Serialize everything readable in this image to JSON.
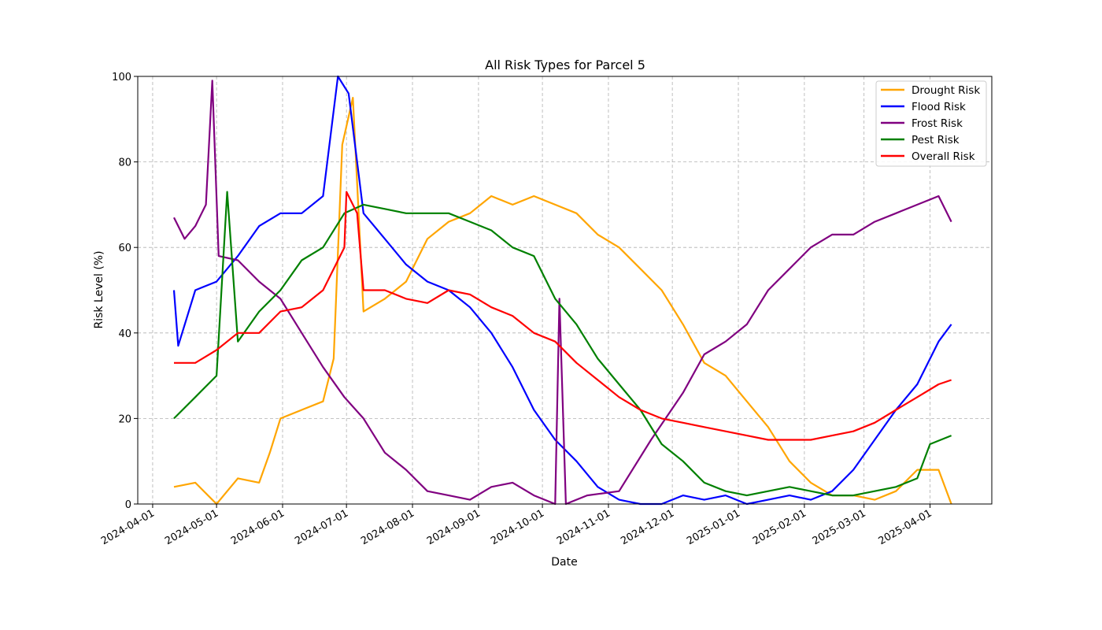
{
  "chart_data": {
    "type": "line",
    "title": "All Risk Types for Parcel 5",
    "xlabel": "Date",
    "ylabel": "Risk Level (%)",
    "xlim": [
      "2024-03-25",
      "2025-04-30"
    ],
    "ylim": [
      0,
      100
    ],
    "grid": true,
    "legend_position": "top-right",
    "x_ticks": [
      "2024-04-01",
      "2024-05-01",
      "2024-06-01",
      "2024-07-01",
      "2024-08-01",
      "2024-09-01",
      "2024-10-01",
      "2024-11-01",
      "2024-12-01",
      "2025-01-01",
      "2025-02-01",
      "2025-03-01",
      "2025-04-01"
    ],
    "y_ticks": [
      0,
      20,
      40,
      60,
      80,
      100
    ],
    "series": [
      {
        "name": "Drought Risk",
        "color": "#ffa500",
        "points": [
          [
            "2024-04-11",
            4
          ],
          [
            "2024-04-21",
            5
          ],
          [
            "2024-05-01",
            0
          ],
          [
            "2024-05-11",
            6
          ],
          [
            "2024-05-21",
            5
          ],
          [
            "2024-05-26",
            12
          ],
          [
            "2024-05-31",
            20
          ],
          [
            "2024-06-10",
            22
          ],
          [
            "2024-06-20",
            24
          ],
          [
            "2024-06-25",
            34
          ],
          [
            "2024-06-29",
            84
          ],
          [
            "2024-07-04",
            95
          ],
          [
            "2024-07-09",
            45
          ],
          [
            "2024-07-19",
            48
          ],
          [
            "2024-07-29",
            52
          ],
          [
            "2024-08-08",
            62
          ],
          [
            "2024-08-18",
            66
          ],
          [
            "2024-08-28",
            68
          ],
          [
            "2024-09-07",
            72
          ],
          [
            "2024-09-17",
            70
          ],
          [
            "2024-09-27",
            72
          ],
          [
            "2024-10-07",
            70
          ],
          [
            "2024-10-17",
            68
          ],
          [
            "2024-10-27",
            63
          ],
          [
            "2024-11-06",
            60
          ],
          [
            "2024-11-16",
            55
          ],
          [
            "2024-11-26",
            50
          ],
          [
            "2024-12-06",
            42
          ],
          [
            "2024-12-16",
            33
          ],
          [
            "2024-12-26",
            30
          ],
          [
            "2025-01-05",
            24
          ],
          [
            "2025-01-15",
            18
          ],
          [
            "2025-01-25",
            10
          ],
          [
            "2025-02-04",
            5
          ],
          [
            "2025-02-14",
            2
          ],
          [
            "2025-02-24",
            2
          ],
          [
            "2025-03-06",
            1
          ],
          [
            "2025-03-16",
            3
          ],
          [
            "2025-03-26",
            8
          ],
          [
            "2025-04-05",
            8
          ],
          [
            "2025-04-11",
            0
          ]
        ]
      },
      {
        "name": "Flood Risk",
        "color": "#0000ff",
        "points": [
          [
            "2024-04-11",
            50
          ],
          [
            "2024-04-13",
            37
          ],
          [
            "2024-04-21",
            50
          ],
          [
            "2024-05-01",
            52
          ],
          [
            "2024-05-11",
            58
          ],
          [
            "2024-05-21",
            65
          ],
          [
            "2024-05-31",
            68
          ],
          [
            "2024-06-10",
            68
          ],
          [
            "2024-06-20",
            72
          ],
          [
            "2024-06-27",
            100
          ],
          [
            "2024-07-02",
            96
          ],
          [
            "2024-07-09",
            68
          ],
          [
            "2024-07-19",
            62
          ],
          [
            "2024-07-29",
            56
          ],
          [
            "2024-08-08",
            52
          ],
          [
            "2024-08-18",
            50
          ],
          [
            "2024-08-28",
            46
          ],
          [
            "2024-09-07",
            40
          ],
          [
            "2024-09-17",
            32
          ],
          [
            "2024-09-27",
            22
          ],
          [
            "2024-10-07",
            15
          ],
          [
            "2024-10-17",
            10
          ],
          [
            "2024-10-27",
            4
          ],
          [
            "2024-11-06",
            1
          ],
          [
            "2024-11-16",
            0
          ],
          [
            "2024-11-26",
            0
          ],
          [
            "2024-12-06",
            2
          ],
          [
            "2024-12-16",
            1
          ],
          [
            "2024-12-26",
            2
          ],
          [
            "2025-01-05",
            0
          ],
          [
            "2025-01-15",
            1
          ],
          [
            "2025-01-25",
            2
          ],
          [
            "2025-02-04",
            1
          ],
          [
            "2025-02-14",
            3
          ],
          [
            "2025-02-24",
            8
          ],
          [
            "2025-03-06",
            15
          ],
          [
            "2025-03-16",
            22
          ],
          [
            "2025-03-26",
            28
          ],
          [
            "2025-04-05",
            38
          ],
          [
            "2025-04-11",
            42
          ]
        ]
      },
      {
        "name": "Frost Risk",
        "color": "#800080",
        "points": [
          [
            "2024-04-11",
            67
          ],
          [
            "2024-04-16",
            62
          ],
          [
            "2024-04-21",
            65
          ],
          [
            "2024-04-26",
            70
          ],
          [
            "2024-04-29",
            99
          ],
          [
            "2024-05-02",
            58
          ],
          [
            "2024-05-11",
            57
          ],
          [
            "2024-05-21",
            52
          ],
          [
            "2024-05-31",
            48
          ],
          [
            "2024-06-10",
            40
          ],
          [
            "2024-06-20",
            32
          ],
          [
            "2024-06-30",
            25
          ],
          [
            "2024-07-09",
            20
          ],
          [
            "2024-07-19",
            12
          ],
          [
            "2024-07-29",
            8
          ],
          [
            "2024-08-08",
            3
          ],
          [
            "2024-08-18",
            2
          ],
          [
            "2024-08-28",
            1
          ],
          [
            "2024-09-07",
            4
          ],
          [
            "2024-09-17",
            5
          ],
          [
            "2024-09-27",
            2
          ],
          [
            "2024-10-07",
            0
          ],
          [
            "2024-10-09",
            48
          ],
          [
            "2024-10-12",
            0
          ],
          [
            "2024-10-22",
            2
          ],
          [
            "2024-11-06",
            3
          ],
          [
            "2024-11-21",
            15
          ],
          [
            "2024-12-06",
            26
          ],
          [
            "2024-12-16",
            35
          ],
          [
            "2024-12-26",
            38
          ],
          [
            "2025-01-05",
            42
          ],
          [
            "2025-01-15",
            50
          ],
          [
            "2025-01-25",
            55
          ],
          [
            "2025-02-04",
            60
          ],
          [
            "2025-02-14",
            63
          ],
          [
            "2025-02-24",
            63
          ],
          [
            "2025-03-06",
            66
          ],
          [
            "2025-03-16",
            68
          ],
          [
            "2025-03-26",
            70
          ],
          [
            "2025-04-05",
            72
          ],
          [
            "2025-04-11",
            66
          ]
        ]
      },
      {
        "name": "Pest Risk",
        "color": "#008000",
        "points": [
          [
            "2024-04-11",
            20
          ],
          [
            "2024-04-21",
            25
          ],
          [
            "2024-05-01",
            30
          ],
          [
            "2024-05-06",
            73
          ],
          [
            "2024-05-11",
            38
          ],
          [
            "2024-05-21",
            45
          ],
          [
            "2024-05-31",
            50
          ],
          [
            "2024-06-10",
            57
          ],
          [
            "2024-06-20",
            60
          ],
          [
            "2024-06-30",
            68
          ],
          [
            "2024-07-09",
            70
          ],
          [
            "2024-07-19",
            69
          ],
          [
            "2024-07-29",
            68
          ],
          [
            "2024-08-08",
            68
          ],
          [
            "2024-08-18",
            68
          ],
          [
            "2024-08-28",
            66
          ],
          [
            "2024-09-07",
            64
          ],
          [
            "2024-09-17",
            60
          ],
          [
            "2024-09-27",
            58
          ],
          [
            "2024-10-07",
            48
          ],
          [
            "2024-10-17",
            42
          ],
          [
            "2024-10-27",
            34
          ],
          [
            "2024-11-06",
            28
          ],
          [
            "2024-11-16",
            22
          ],
          [
            "2024-11-26",
            14
          ],
          [
            "2024-12-06",
            10
          ],
          [
            "2024-12-16",
            5
          ],
          [
            "2024-12-26",
            3
          ],
          [
            "2025-01-05",
            2
          ],
          [
            "2025-01-15",
            3
          ],
          [
            "2025-01-25",
            4
          ],
          [
            "2025-02-04",
            3
          ],
          [
            "2025-02-14",
            2
          ],
          [
            "2025-02-24",
            2
          ],
          [
            "2025-03-06",
            3
          ],
          [
            "2025-03-16",
            4
          ],
          [
            "2025-03-26",
            6
          ],
          [
            "2025-04-01",
            14
          ],
          [
            "2025-04-11",
            16
          ]
        ]
      },
      {
        "name": "Overall Risk",
        "color": "#ff0000",
        "points": [
          [
            "2024-04-11",
            33
          ],
          [
            "2024-04-21",
            33
          ],
          [
            "2024-05-01",
            36
          ],
          [
            "2024-05-11",
            40
          ],
          [
            "2024-05-21",
            40
          ],
          [
            "2024-05-31",
            45
          ],
          [
            "2024-06-10",
            46
          ],
          [
            "2024-06-20",
            50
          ],
          [
            "2024-06-30",
            60
          ],
          [
            "2024-07-01",
            73
          ],
          [
            "2024-07-06",
            68
          ],
          [
            "2024-07-09",
            50
          ],
          [
            "2024-07-19",
            50
          ],
          [
            "2024-07-29",
            48
          ],
          [
            "2024-08-08",
            47
          ],
          [
            "2024-08-18",
            50
          ],
          [
            "2024-08-28",
            49
          ],
          [
            "2024-09-07",
            46
          ],
          [
            "2024-09-17",
            44
          ],
          [
            "2024-09-27",
            40
          ],
          [
            "2024-10-07",
            38
          ],
          [
            "2024-10-17",
            33
          ],
          [
            "2024-10-27",
            29
          ],
          [
            "2024-11-06",
            25
          ],
          [
            "2024-11-16",
            22
          ],
          [
            "2024-11-26",
            20
          ],
          [
            "2024-12-06",
            19
          ],
          [
            "2024-12-16",
            18
          ],
          [
            "2024-12-26",
            17
          ],
          [
            "2025-01-05",
            16
          ],
          [
            "2025-01-15",
            15
          ],
          [
            "2025-01-25",
            15
          ],
          [
            "2025-02-04",
            15
          ],
          [
            "2025-02-14",
            16
          ],
          [
            "2025-02-24",
            17
          ],
          [
            "2025-03-06",
            19
          ],
          [
            "2025-03-16",
            22
          ],
          [
            "2025-03-26",
            25
          ],
          [
            "2025-04-05",
            28
          ],
          [
            "2025-04-11",
            29
          ]
        ]
      }
    ]
  }
}
